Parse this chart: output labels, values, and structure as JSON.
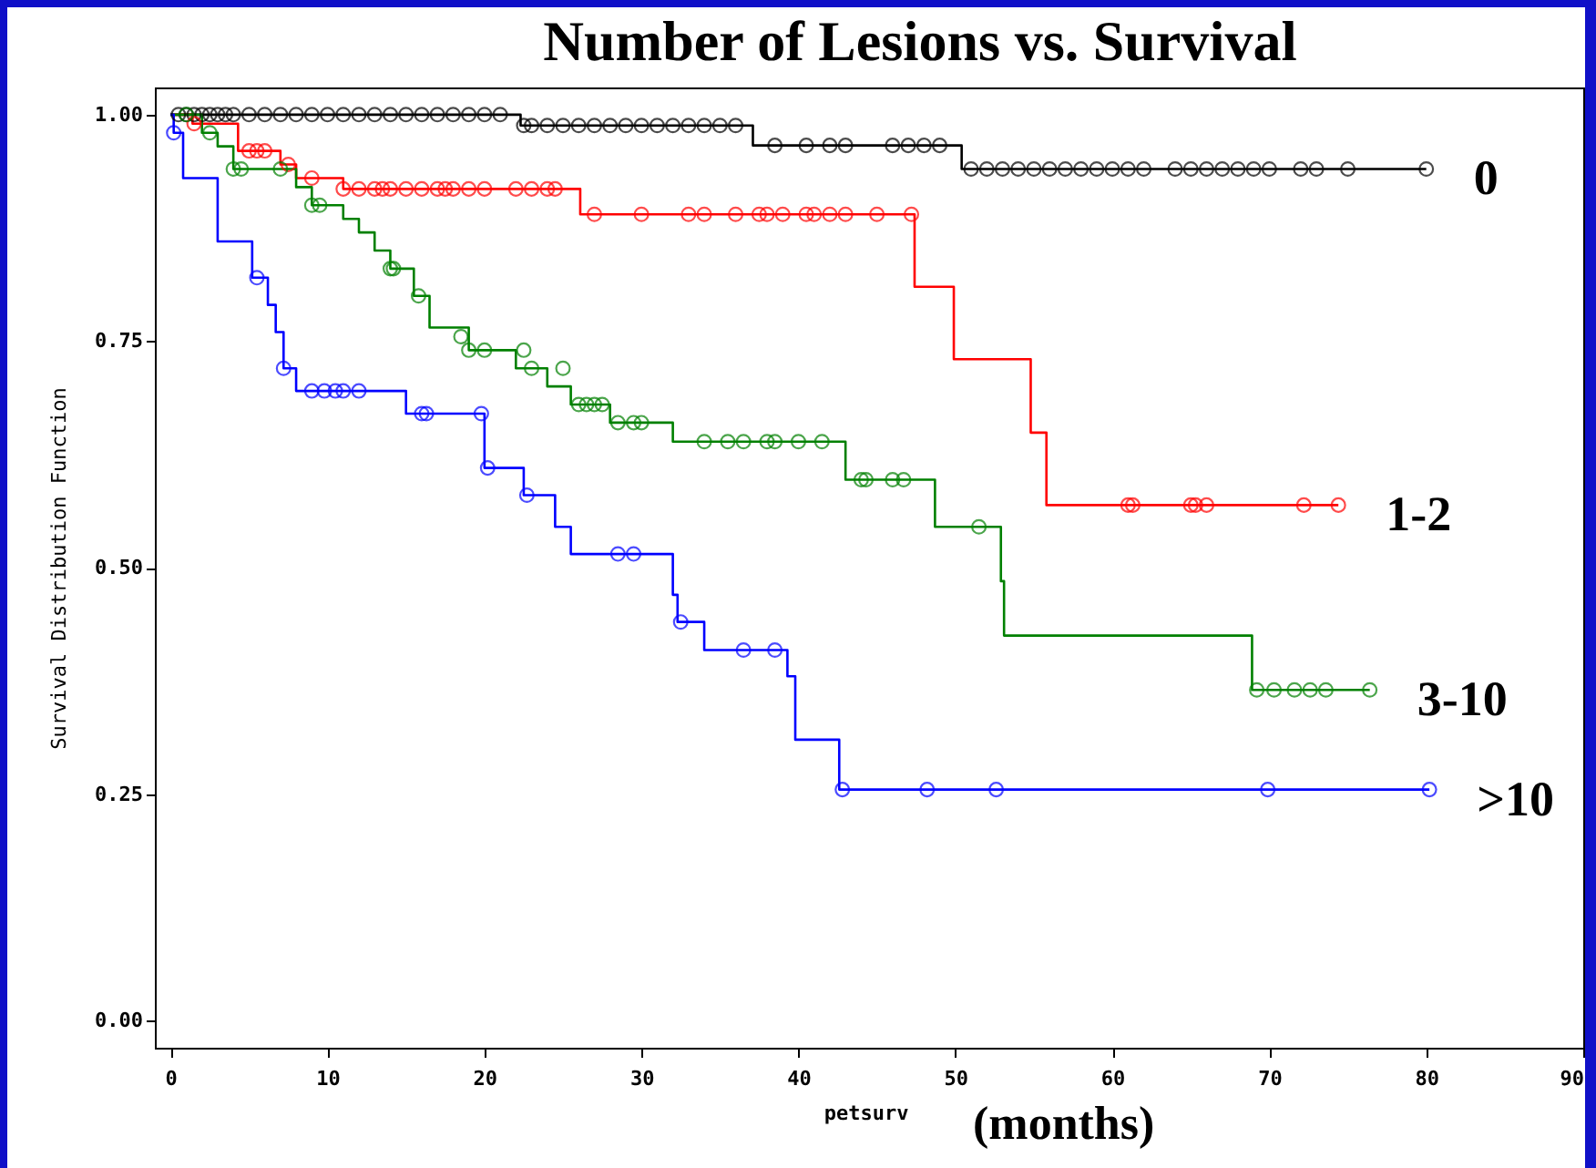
{
  "chart_data": {
    "type": "step",
    "title": "Number of Lesions vs. Survival",
    "xlabel": "petsurv",
    "ylabel": "Survival Distribution Function",
    "annotations": [
      "(months)"
    ],
    "xlim": [
      -1,
      90
    ],
    "xticks": [
      0,
      10,
      20,
      30,
      40,
      50,
      60,
      70,
      80,
      90
    ],
    "ylim": [
      -0.03,
      1.03
    ],
    "yticks": [
      {
        "value": 0,
        "label": "0.00"
      },
      {
        "value": 0.25,
        "label": "0.25"
      },
      {
        "value": 0.5,
        "label": "0.50"
      },
      {
        "value": 0.75,
        "label": "0.75"
      },
      {
        "value": 1,
        "label": "1.00"
      }
    ],
    "grid": false,
    "series": [
      {
        "name": "0",
        "color": "#000000",
        "x": [
          0,
          22.3,
          37.1,
          50.4,
          80
        ],
        "values": [
          1,
          0.988,
          0.966,
          0.94,
          0.94
        ]
      },
      {
        "name": "1-2",
        "color": "#ff0000",
        "x": [
          0,
          1.4,
          4.3,
          7,
          8,
          11,
          26.1,
          47.4,
          49.9,
          54.8,
          55.8,
          74.4
        ],
        "values": [
          1,
          0.99,
          0.96,
          0.945,
          0.93,
          0.918,
          0.89,
          0.81,
          0.73,
          0.649,
          0.569,
          0.569
        ]
      },
      {
        "name": "3-10",
        "color": "#008000",
        "x": [
          0,
          2,
          3,
          4,
          8,
          9,
          11,
          12,
          13,
          14,
          15.5,
          16.5,
          19,
          22,
          24,
          25.5,
          28,
          32,
          43,
          48.7,
          52.9,
          53.1,
          68.9,
          76.4
        ],
        "values": [
          1,
          0.98,
          0.965,
          0.94,
          0.92,
          0.9,
          0.885,
          0.87,
          0.85,
          0.83,
          0.8,
          0.765,
          0.74,
          0.72,
          0.7,
          0.68,
          0.66,
          0.639,
          0.597,
          0.545,
          0.485,
          0.425,
          0.365,
          0.365
        ]
      },
      {
        "name": ">10",
        "color": "#0000ff",
        "x": [
          0,
          0.2,
          0.8,
          3,
          5.2,
          6.2,
          6.7,
          7.2,
          8,
          15,
          20,
          22.5,
          24.5,
          25.5,
          32,
          32.3,
          34,
          39.3,
          39.8,
          42.6,
          80.2
        ],
        "values": [
          1,
          0.98,
          0.93,
          0.86,
          0.82,
          0.79,
          0.76,
          0.72,
          0.695,
          0.67,
          0.61,
          0.58,
          0.545,
          0.515,
          0.47,
          0.44,
          0.409,
          0.38,
          0.31,
          0.255,
          0.255
        ]
      },
      {
        "type": "scatter",
        "marker": "circle",
        "color": "#000000",
        "x": [
          0.5,
          1,
          1.5,
          2,
          2.5,
          3,
          3.5,
          4,
          5,
          6,
          7,
          8,
          9,
          10,
          11,
          12,
          13,
          14,
          15,
          16,
          17,
          18,
          19,
          20,
          21,
          22.5,
          23,
          24,
          25,
          26,
          27,
          28,
          29,
          30,
          31,
          32,
          33,
          34,
          35,
          36,
          38.5,
          40.5,
          42,
          43,
          46,
          47,
          48,
          49,
          51,
          52,
          53,
          54,
          55,
          56,
          57,
          58,
          59,
          60,
          61,
          62,
          64,
          65,
          66,
          67,
          68,
          69,
          70,
          72,
          73,
          75,
          80
        ],
        "values": [
          1,
          1,
          1,
          1,
          1,
          1,
          1,
          1,
          1,
          1,
          1,
          1,
          1,
          1,
          1,
          1,
          1,
          1,
          1,
          1,
          1,
          1,
          1,
          1,
          1,
          0.988,
          0.988,
          0.988,
          0.988,
          0.988,
          0.988,
          0.988,
          0.988,
          0.988,
          0.988,
          0.988,
          0.988,
          0.988,
          0.988,
          0.988,
          0.966,
          0.966,
          0.966,
          0.966,
          0.966,
          0.966,
          0.966,
          0.966,
          0.94,
          0.94,
          0.94,
          0.94,
          0.94,
          0.94,
          0.94,
          0.94,
          0.94,
          0.94,
          0.94,
          0.94,
          0.94,
          0.94,
          0.94,
          0.94,
          0.94,
          0.94,
          0.94,
          0.94,
          0.94,
          0.94,
          0.94
        ]
      },
      {
        "type": "scatter",
        "marker": "circle",
        "color": "#ff0000",
        "x": [
          1.5,
          5,
          5.5,
          6,
          7.5,
          9,
          11,
          12,
          13,
          13.5,
          14,
          15,
          16,
          17,
          17.5,
          18,
          19,
          20,
          22,
          23,
          24,
          24.5,
          27,
          30,
          33,
          34,
          36,
          37.5,
          38,
          39,
          40.5,
          41,
          42,
          43,
          45,
          47.2,
          61,
          61.3,
          65,
          65.3,
          66,
          72.2,
          74.4
        ],
        "values": [
          0.99,
          0.96,
          0.96,
          0.96,
          0.945,
          0.93,
          0.918,
          0.918,
          0.918,
          0.918,
          0.918,
          0.918,
          0.918,
          0.918,
          0.918,
          0.918,
          0.918,
          0.918,
          0.918,
          0.918,
          0.918,
          0.918,
          0.89,
          0.89,
          0.89,
          0.89,
          0.89,
          0.89,
          0.89,
          0.89,
          0.89,
          0.89,
          0.89,
          0.89,
          0.89,
          0.89,
          0.569,
          0.569,
          0.569,
          0.569,
          0.569,
          0.569,
          0.569
        ]
      },
      {
        "type": "scatter",
        "marker": "circle",
        "color": "#008000",
        "x": [
          1,
          2.5,
          4,
          4.5,
          7,
          9,
          9.5,
          14,
          14.2,
          15.8,
          18.5,
          19,
          20,
          22.5,
          23,
          25,
          26,
          26.5,
          27,
          27.5,
          28.5,
          29.5,
          30,
          34,
          35.5,
          36.5,
          38,
          38.5,
          40,
          41.5,
          44,
          44.3,
          46,
          46.7,
          51.5,
          69.2,
          70.3,
          71.6,
          72.6,
          73.6,
          76.4
        ],
        "values": [
          1,
          0.98,
          0.94,
          0.94,
          0.94,
          0.9,
          0.9,
          0.83,
          0.83,
          0.8,
          0.755,
          0.74,
          0.74,
          0.74,
          0.72,
          0.72,
          0.68,
          0.68,
          0.68,
          0.68,
          0.66,
          0.66,
          0.66,
          0.639,
          0.639,
          0.639,
          0.639,
          0.639,
          0.639,
          0.639,
          0.597,
          0.597,
          0.597,
          0.597,
          0.545,
          0.365,
          0.365,
          0.365,
          0.365,
          0.365,
          0.365
        ]
      },
      {
        "type": "scatter",
        "marker": "circle",
        "color": "#0000ff",
        "x": [
          0.2,
          5.5,
          7.2,
          9,
          9.8,
          10.5,
          11,
          12,
          16,
          16.3,
          19.8,
          20.2,
          22.7,
          28.5,
          29.5,
          32.5,
          36.5,
          38.5,
          42.8,
          48.2,
          52.6,
          69.9,
          80.2
        ],
        "values": [
          0.98,
          0.82,
          0.72,
          0.695,
          0.695,
          0.695,
          0.695,
          0.695,
          0.67,
          0.67,
          0.67,
          0.61,
          0.58,
          0.515,
          0.515,
          0.44,
          0.409,
          0.409,
          0.255,
          0.255,
          0.255,
          0.255,
          0.255
        ]
      }
    ]
  }
}
